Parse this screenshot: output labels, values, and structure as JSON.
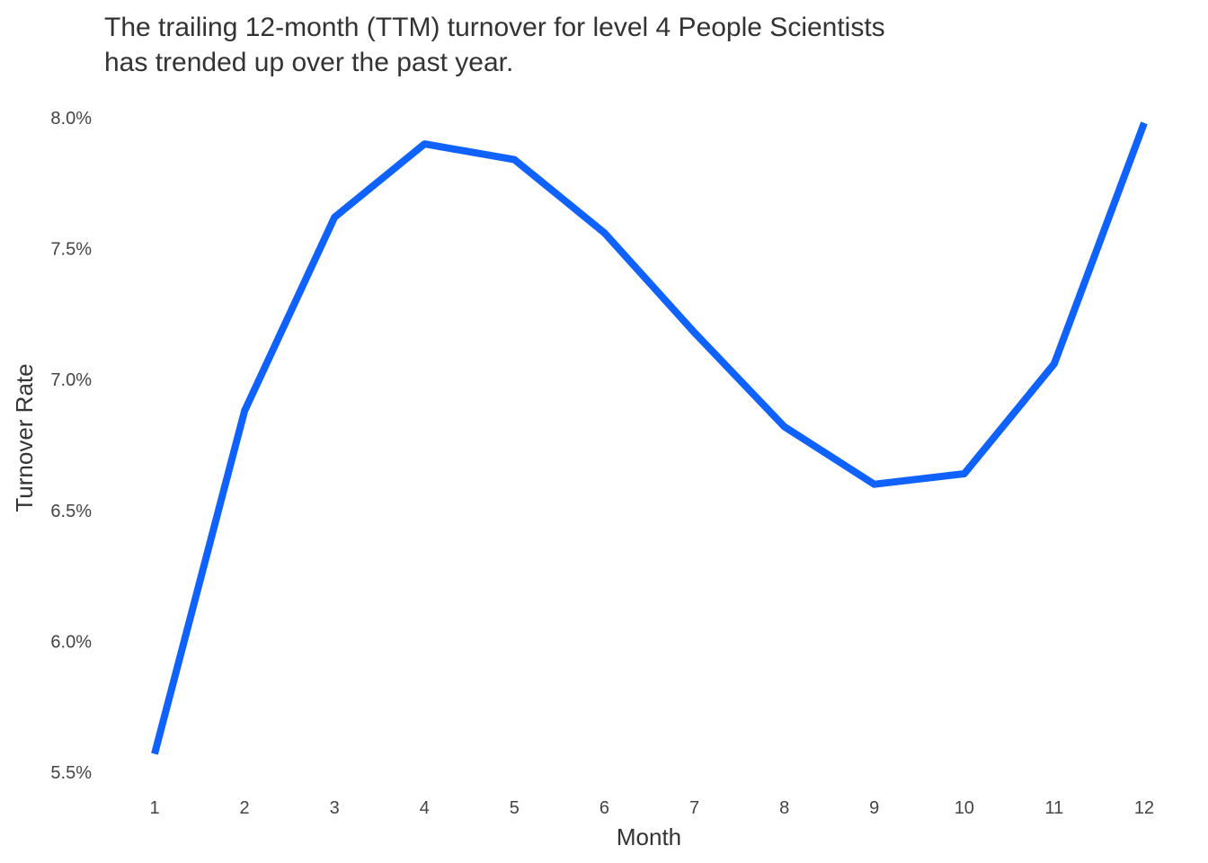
{
  "chart_data": {
    "type": "line",
    "title_lines": [
      "The trailing 12-month (TTM) turnover for level 4 People Scientists",
      "has trended up over the past year."
    ],
    "xlabel": "Month",
    "ylabel": "Turnover Rate",
    "x": [
      1,
      2,
      3,
      4,
      5,
      6,
      7,
      8,
      9,
      10,
      11,
      12
    ],
    "x_tick_labels": [
      "1",
      "2",
      "3",
      "4",
      "5",
      "6",
      "7",
      "8",
      "9",
      "10",
      "11",
      "12"
    ],
    "y_ticks": [
      5.5,
      6.0,
      6.5,
      7.0,
      7.5,
      8.0
    ],
    "y_tick_labels": [
      "5.5%",
      "6.0%",
      "6.5%",
      "7.0%",
      "7.5%",
      "8.0%"
    ],
    "ylim": [
      5.5,
      8.0
    ],
    "xlim": [
      1,
      12
    ],
    "grid": false,
    "legend": "none",
    "series": [
      {
        "values": [
          5.57,
          6.88,
          7.62,
          7.9,
          7.84,
          7.56,
          7.18,
          6.82,
          6.6,
          6.64,
          7.06,
          7.98
        ],
        "color": "#0F62FE"
      }
    ]
  }
}
